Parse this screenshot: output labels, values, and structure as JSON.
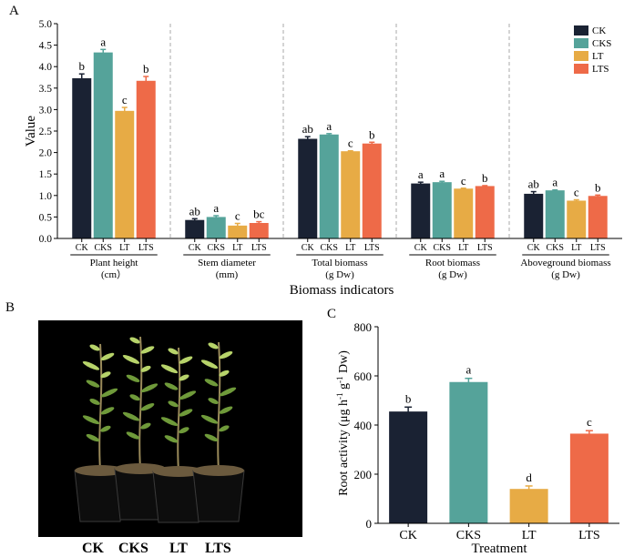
{
  "panels": {
    "a": "A",
    "b": "B",
    "c": "C"
  },
  "colors": {
    "CK": "#1a2233",
    "CKS": "#55a39a",
    "LT": "#e7ab45",
    "LTS": "#ee6a48"
  },
  "chart_data": [
    {
      "type": "bar",
      "panel": "A",
      "ylabel": "Value",
      "xlabel": "Biomass indicators",
      "ylim": [
        0,
        5.0
      ],
      "yticks": [
        "0.0",
        "0.5",
        "1.0",
        "1.5",
        "2.0",
        "2.5",
        "3.0",
        "3.5",
        "4.0",
        "4.5",
        "5.0"
      ],
      "series_names": [
        "CK",
        "CKS",
        "LT",
        "LTS"
      ],
      "legend": [
        "CK",
        "CKS",
        "LT",
        "LTS"
      ],
      "legend_position": "top-right",
      "groups": [
        {
          "label": [
            "Plant height",
            "(cm）"
          ],
          "values": [
            3.73,
            4.33,
            2.97,
            3.67
          ],
          "errors": [
            0.1,
            0.07,
            0.08,
            0.1
          ],
          "letters": [
            "b",
            "a",
            "c",
            "b"
          ]
        },
        {
          "label": [
            "Stem diameter",
            "(mm)"
          ],
          "values": [
            0.43,
            0.5,
            0.3,
            0.36
          ],
          "errors": [
            0.03,
            0.03,
            0.05,
            0.03
          ],
          "letters": [
            "ab",
            "a",
            "c",
            "bc"
          ]
        },
        {
          "label": [
            "Total biomass",
            "(g Dw)"
          ],
          "values": [
            2.32,
            2.42,
            2.03,
            2.21
          ],
          "errors": [
            0.05,
            0.02,
            0.01,
            0.03
          ],
          "letters": [
            "ab",
            "a",
            "c",
            "b"
          ]
        },
        {
          "label": [
            "Root biomass",
            "(g Dw)"
          ],
          "values": [
            1.28,
            1.31,
            1.16,
            1.22
          ],
          "errors": [
            0.03,
            0.02,
            0.01,
            0.01
          ],
          "letters": [
            "a",
            "a",
            "c",
            "b"
          ]
        },
        {
          "label": [
            "Aboveground biomass",
            "(g Dw)"
          ],
          "values": [
            1.04,
            1.12,
            0.88,
            0.99
          ],
          "errors": [
            0.05,
            0.01,
            0.02,
            0.02
          ],
          "letters": [
            "ab",
            "a",
            "c",
            "b"
          ]
        }
      ]
    },
    {
      "type": "bar",
      "panel": "C",
      "ylabel": "Root activity (μg h-1 g-1 Dw)",
      "ylabel_parts": [
        "Root activity (μg h",
        "-1",
        " g",
        "-1",
        " Dw)"
      ],
      "xlabel": "Treatment",
      "ylim": [
        0,
        800
      ],
      "yticks": [
        "0",
        "200",
        "400",
        "600",
        "800"
      ],
      "categories": [
        "CK",
        "CKS",
        "LT",
        "LTS"
      ],
      "values": [
        455,
        575,
        140,
        365
      ],
      "errors": [
        18,
        15,
        12,
        12
      ],
      "letters": [
        "b",
        "a",
        "d",
        "c"
      ]
    }
  ],
  "photo_labels": [
    "CK",
    "CKS",
    "LT",
    "LTS"
  ]
}
